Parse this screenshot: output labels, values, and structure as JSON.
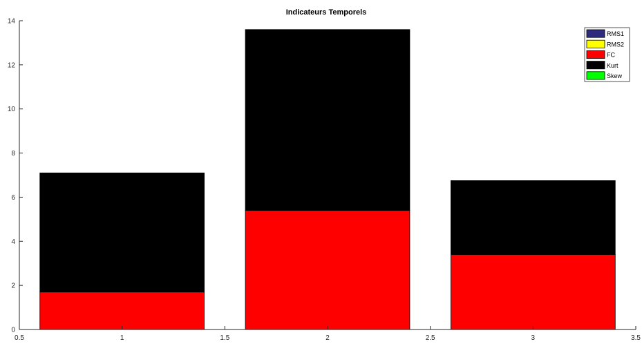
{
  "chart_data": {
    "type": "bar",
    "stacked": true,
    "title": "Indicateurs Temporels",
    "xlabel": "",
    "ylabel": "",
    "xlim": [
      0.5,
      3.5
    ],
    "ylim": [
      0,
      14
    ],
    "xticks": [
      0.5,
      1,
      1.5,
      2,
      2.5,
      3,
      3.5
    ],
    "xtick_labels": [
      "0.5",
      "1",
      "1.5",
      "2",
      "2.5",
      "3",
      "3.5"
    ],
    "yticks": [
      0,
      2,
      4,
      6,
      8,
      10,
      12,
      14
    ],
    "ytick_labels": [
      "0",
      "2",
      "4",
      "6",
      "8",
      "10",
      "12",
      "14"
    ],
    "x": [
      1,
      2,
      3
    ],
    "bar_width": 0.8,
    "grid": false,
    "legend_position": "top-right",
    "series": [
      {
        "name": "RMS1",
        "color": "#2e2a7e",
        "values": [
          0,
          0,
          0
        ]
      },
      {
        "name": "RMS2",
        "color": "#ffff00",
        "values": [
          0,
          0,
          0
        ]
      },
      {
        "name": "FC",
        "color": "#ff0000",
        "values": [
          1.7,
          5.4,
          3.4
        ]
      },
      {
        "name": "Kurt",
        "color": "#000000",
        "values": [
          5.4,
          8.2,
          3.35
        ]
      },
      {
        "name": "Skew",
        "color": "#00ff00",
        "values": [
          0,
          0,
          0
        ]
      }
    ]
  }
}
